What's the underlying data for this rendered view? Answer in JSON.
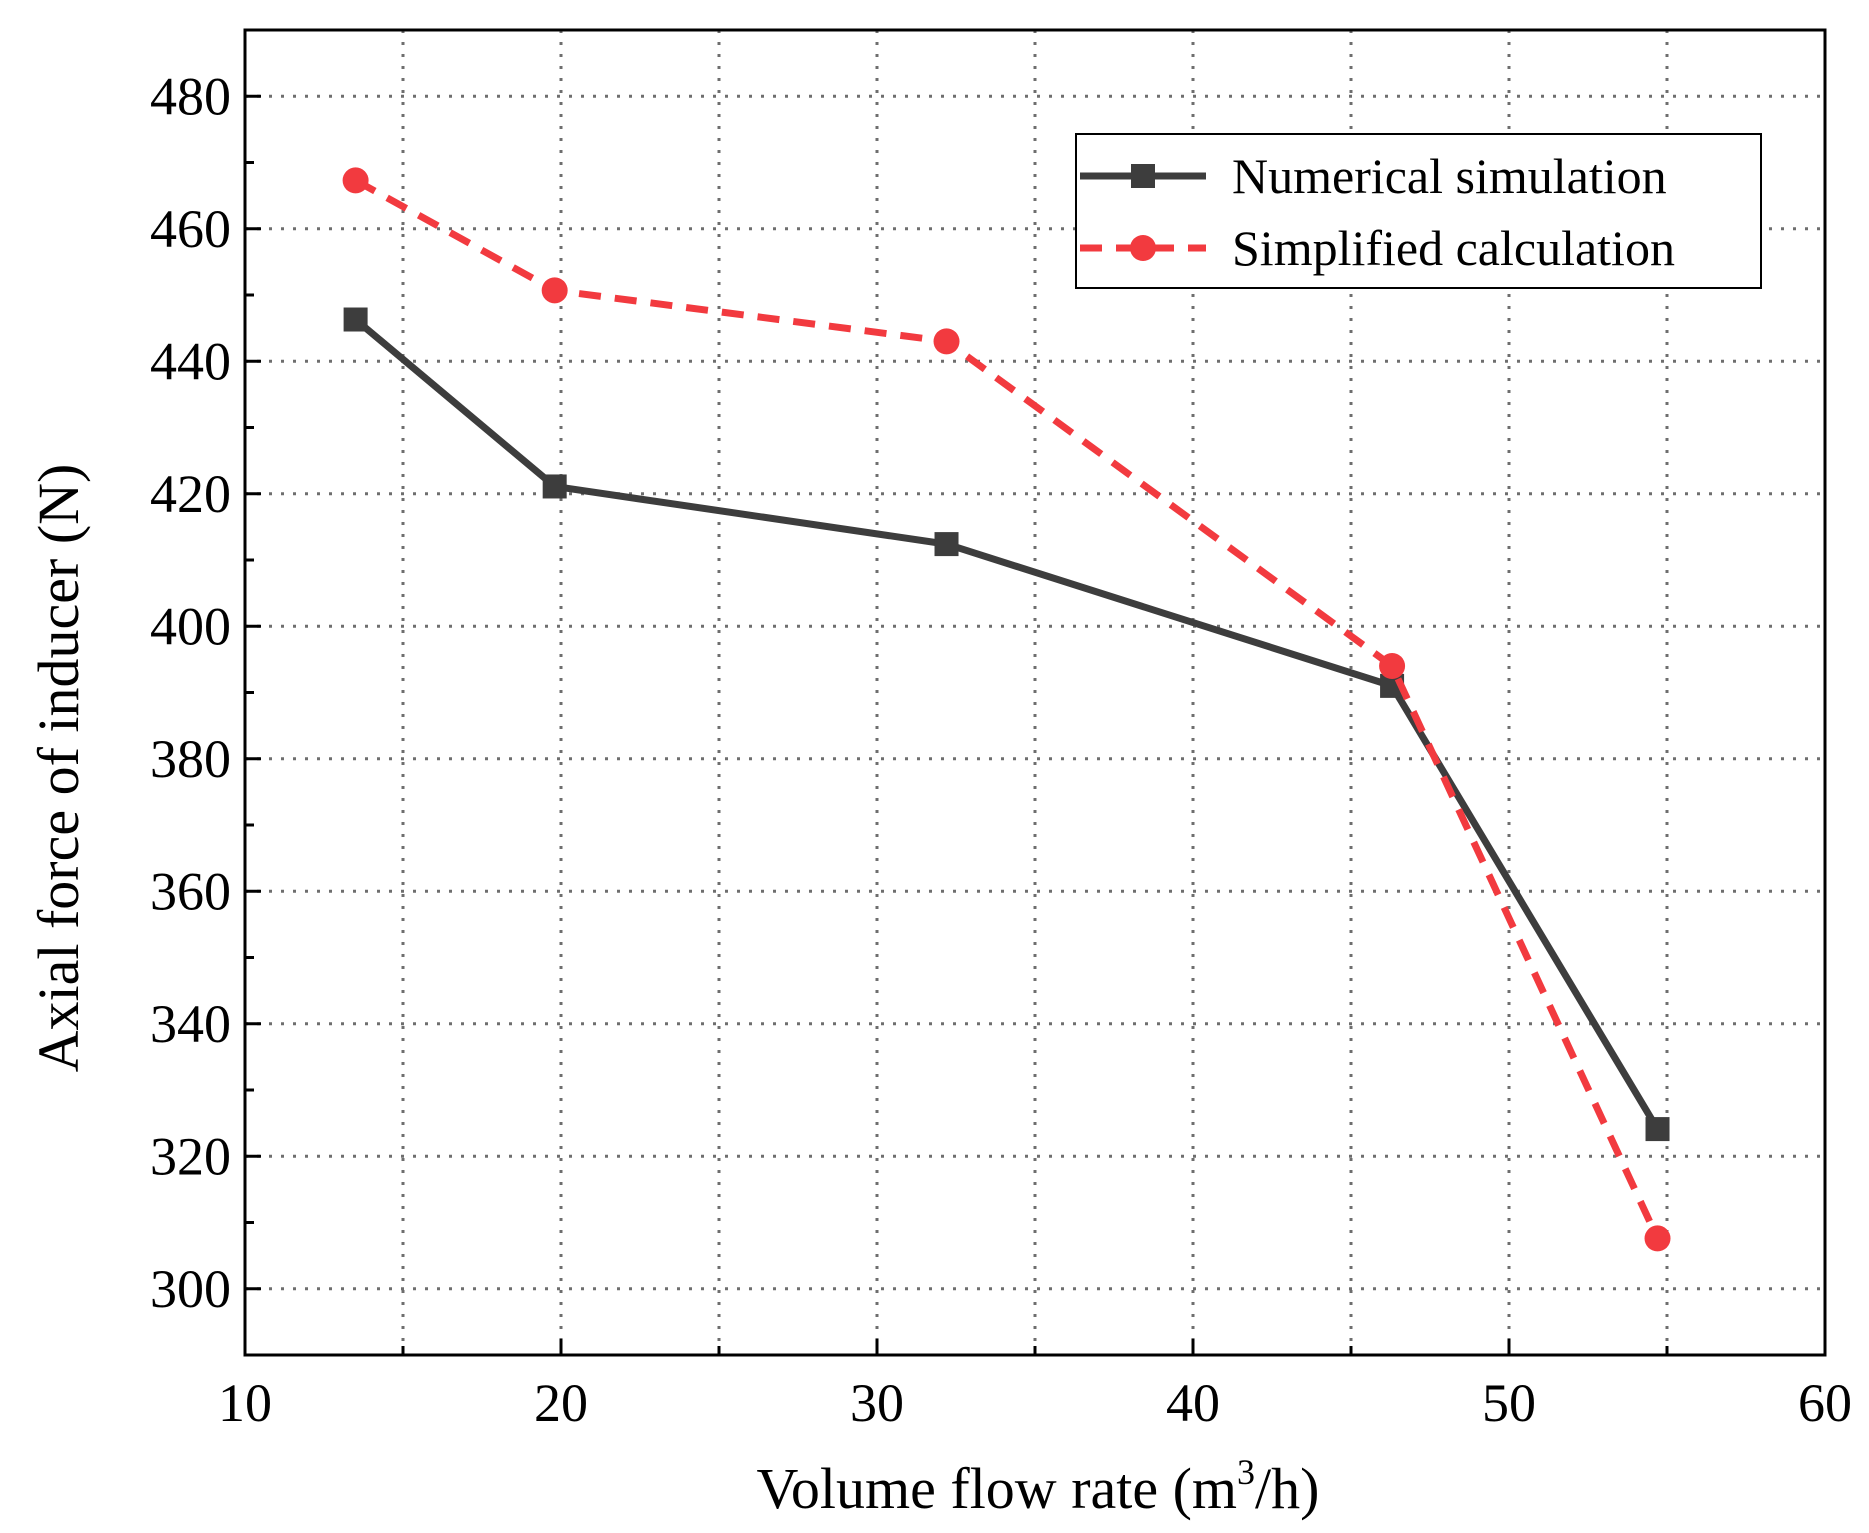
{
  "chart_data": {
    "type": "line",
    "title": "",
    "xlabel": "Volume flow rate (m",
    "xlabel_sup": "3",
    "xlabel_tail": "/h)",
    "ylabel": "Axial force of inducer  (N)",
    "xlim": [
      10,
      60
    ],
    "ylim": [
      290,
      490
    ],
    "x_major_ticks": [
      10,
      20,
      30,
      40,
      50,
      60
    ],
    "x_minor_ticks": [
      15,
      25,
      35,
      45,
      55
    ],
    "x_tick_labels": [
      "10",
      "20",
      "30",
      "40",
      "50",
      "60"
    ],
    "y_major_ticks": [
      300,
      320,
      340,
      360,
      380,
      400,
      420,
      440,
      460,
      480
    ],
    "y_minor_ticks": [
      290,
      310,
      330,
      350,
      370,
      390,
      410,
      430,
      450,
      470,
      490
    ],
    "y_tick_labels": [
      "300",
      "320",
      "340",
      "360",
      "380",
      "400",
      "420",
      "440",
      "460",
      "480"
    ],
    "grid": true,
    "legend_position": "top-right",
    "series": [
      {
        "name": "Numerical simulation",
        "color": "#3d3d3d",
        "line_style": "solid",
        "marker": "square",
        "x": [
          13.5,
          19.8,
          32.2,
          46.3,
          54.7
        ],
        "y": [
          446.3,
          421.1,
          412.4,
          391.0,
          324.1
        ]
      },
      {
        "name": "Simplified calculation",
        "color": "#f23a3f",
        "line_style": "dashed",
        "marker": "circle",
        "x": [
          13.5,
          19.8,
          32.2,
          46.3,
          54.7
        ],
        "y": [
          467.3,
          450.7,
          443.0,
          394.0,
          307.6
        ]
      }
    ]
  }
}
